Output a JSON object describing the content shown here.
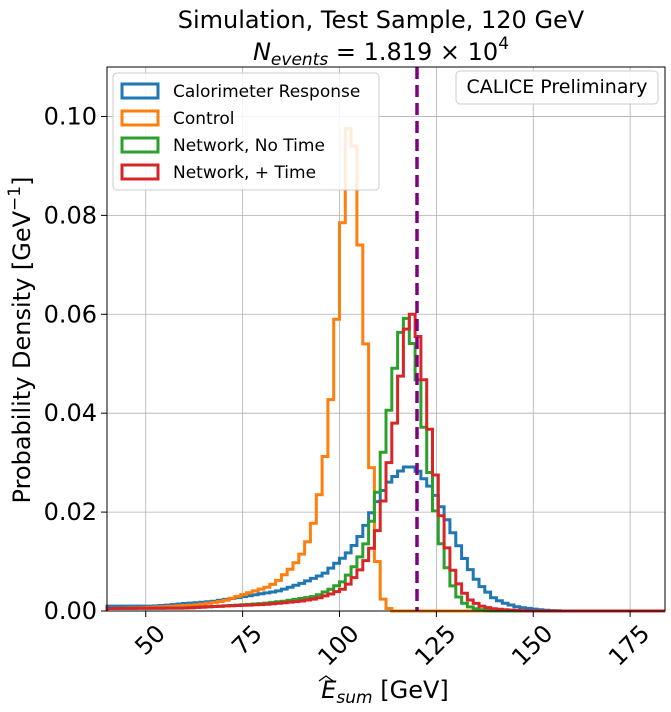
{
  "chart_data": {
    "type": "histogram-step",
    "title_line1": "Simulation, Test Sample, 120 GeV",
    "title_line2": {
      "prefix": "N",
      "subscript": "events",
      "mid": " = 1.819 × 10",
      "superscript": "4"
    },
    "xlabel": {
      "symbol": "E",
      "subscript": "sum",
      "unit": " [GeV]"
    },
    "ylabel": {
      "prefix": "Probability Density [GeV",
      "superscript": "−1",
      "suffix": "]"
    },
    "annotation": "CALICE Preliminary",
    "xlim": [
      40,
      184
    ],
    "ylim": [
      0,
      0.11
    ],
    "grid": true,
    "legend_position": "top-left",
    "x_ticks": [
      50,
      75,
      100,
      125,
      150,
      175
    ],
    "x_tick_labels": [
      "50",
      "75",
      "100",
      "125",
      "150",
      "175"
    ],
    "y_ticks": [
      0,
      0.02,
      0.04,
      0.06,
      0.08,
      0.1
    ],
    "y_tick_labels": [
      "0.00",
      "0.02",
      "0.04",
      "0.06",
      "0.08",
      "0.10"
    ],
    "reference_line": {
      "x": 120,
      "color": "#800080"
    },
    "bin_width": 1.5,
    "series": [
      {
        "name": "Calorimeter Response",
        "color": "#1f77b4",
        "points": [
          [
            40,
            0.001
          ],
          [
            52,
            0.001
          ],
          [
            56,
            0.0012
          ],
          [
            60,
            0.0015
          ],
          [
            64,
            0.0017
          ],
          [
            68,
            0.002
          ],
          [
            72,
            0.0025
          ],
          [
            76,
            0.003
          ],
          [
            80,
            0.0035
          ],
          [
            84,
            0.004
          ],
          [
            88,
            0.005
          ],
          [
            90,
            0.0055
          ],
          [
            93,
            0.0065
          ],
          [
            96,
            0.0075
          ],
          [
            99,
            0.0095
          ],
          [
            102,
            0.0115
          ],
          [
            104,
            0.0135
          ],
          [
            106,
            0.016
          ],
          [
            108,
            0.0195
          ],
          [
            110,
            0.0225
          ],
          [
            112,
            0.0255
          ],
          [
            114,
            0.027
          ],
          [
            116,
            0.0285
          ],
          [
            118,
            0.0295
          ],
          [
            120,
            0.0285
          ],
          [
            122,
            0.0265
          ],
          [
            124,
            0.0245
          ],
          [
            126,
            0.0215
          ],
          [
            128,
            0.018
          ],
          [
            130,
            0.0145
          ],
          [
            132,
            0.011
          ],
          [
            134,
            0.008
          ],
          [
            136,
            0.0055
          ],
          [
            138,
            0.004
          ],
          [
            140,
            0.0025
          ],
          [
            143,
            0.0015
          ],
          [
            146,
            0.0008
          ],
          [
            150,
            0.0004
          ],
          [
            154,
            0.0001
          ],
          [
            158,
            0
          ]
        ]
      },
      {
        "name": "Control",
        "color": "#ff7f0e",
        "points": [
          [
            40,
            0.0005
          ],
          [
            50,
            0.0007
          ],
          [
            58,
            0.001
          ],
          [
            64,
            0.0013
          ],
          [
            70,
            0.002
          ],
          [
            74,
            0.003
          ],
          [
            78,
            0.004
          ],
          [
            82,
            0.005
          ],
          [
            84,
            0.006
          ],
          [
            86,
            0.0075
          ],
          [
            88,
            0.009
          ],
          [
            89.5,
            0.0105
          ],
          [
            91,
            0.0125
          ],
          [
            92.5,
            0.0155
          ],
          [
            94,
            0.02
          ],
          [
            95.5,
            0.027
          ],
          [
            97,
            0.0355
          ],
          [
            98.5,
            0.05
          ],
          [
            100,
            0.068
          ],
          [
            101.5,
            0.089
          ],
          [
            103,
            0.106
          ],
          [
            104.5,
            0.082
          ],
          [
            106,
            0.066
          ],
          [
            107.5,
            0.042
          ],
          [
            109,
            0.016
          ],
          [
            110.5,
            0.004
          ],
          [
            112,
            0.0008
          ],
          [
            114,
            0
          ]
        ]
      },
      {
        "name": "Network, No Time",
        "color": "#2ca02c",
        "points": [
          [
            40,
            0.0005
          ],
          [
            60,
            0.0006
          ],
          [
            70,
            0.001
          ],
          [
            80,
            0.0015
          ],
          [
            86,
            0.002
          ],
          [
            90,
            0.0025
          ],
          [
            94,
            0.003
          ],
          [
            98,
            0.0045
          ],
          [
            101,
            0.006
          ],
          [
            103,
            0.008
          ],
          [
            105,
            0.0105
          ],
          [
            107,
            0.014
          ],
          [
            108.5,
            0.019
          ],
          [
            110,
            0.025
          ],
          [
            111.5,
            0.0335
          ],
          [
            113,
            0.042
          ],
          [
            114.5,
            0.0505
          ],
          [
            116,
            0.0575
          ],
          [
            117.5,
            0.0595
          ],
          [
            119,
            0.053
          ],
          [
            120.5,
            0.0455
          ],
          [
            122,
            0.0355
          ],
          [
            123.5,
            0.0265
          ],
          [
            125,
            0.019
          ],
          [
            126.5,
            0.0125
          ],
          [
            128,
            0.008
          ],
          [
            129.5,
            0.0045
          ],
          [
            131,
            0.0025
          ],
          [
            133,
            0.001
          ],
          [
            136,
            0.0003
          ],
          [
            140,
            0
          ]
        ]
      },
      {
        "name": "Network, + Time",
        "color": "#d62728",
        "points": [
          [
            40,
            0.0005
          ],
          [
            60,
            0.0006
          ],
          [
            70,
            0.001
          ],
          [
            80,
            0.0013
          ],
          [
            86,
            0.0017
          ],
          [
            90,
            0.002
          ],
          [
            94,
            0.0025
          ],
          [
            98,
            0.0035
          ],
          [
            101,
            0.0045
          ],
          [
            103,
            0.006
          ],
          [
            105,
            0.008
          ],
          [
            107,
            0.0105
          ],
          [
            109,
            0.014
          ],
          [
            110.5,
            0.0185
          ],
          [
            112,
            0.026
          ],
          [
            113.5,
            0.034
          ],
          [
            115,
            0.042
          ],
          [
            116.5,
            0.053
          ],
          [
            118,
            0.061
          ],
          [
            119.5,
            0.059
          ],
          [
            121,
            0.052
          ],
          [
            122.5,
            0.0415
          ],
          [
            124,
            0.032
          ],
          [
            125.5,
            0.023
          ],
          [
            127,
            0.0155
          ],
          [
            128.5,
            0.01
          ],
          [
            130,
            0.0065
          ],
          [
            132,
            0.0038
          ],
          [
            134,
            0.002
          ],
          [
            137,
            0.0009
          ],
          [
            140,
            0.0004
          ],
          [
            144,
            0.0002
          ],
          [
            148,
            0
          ]
        ]
      }
    ]
  }
}
